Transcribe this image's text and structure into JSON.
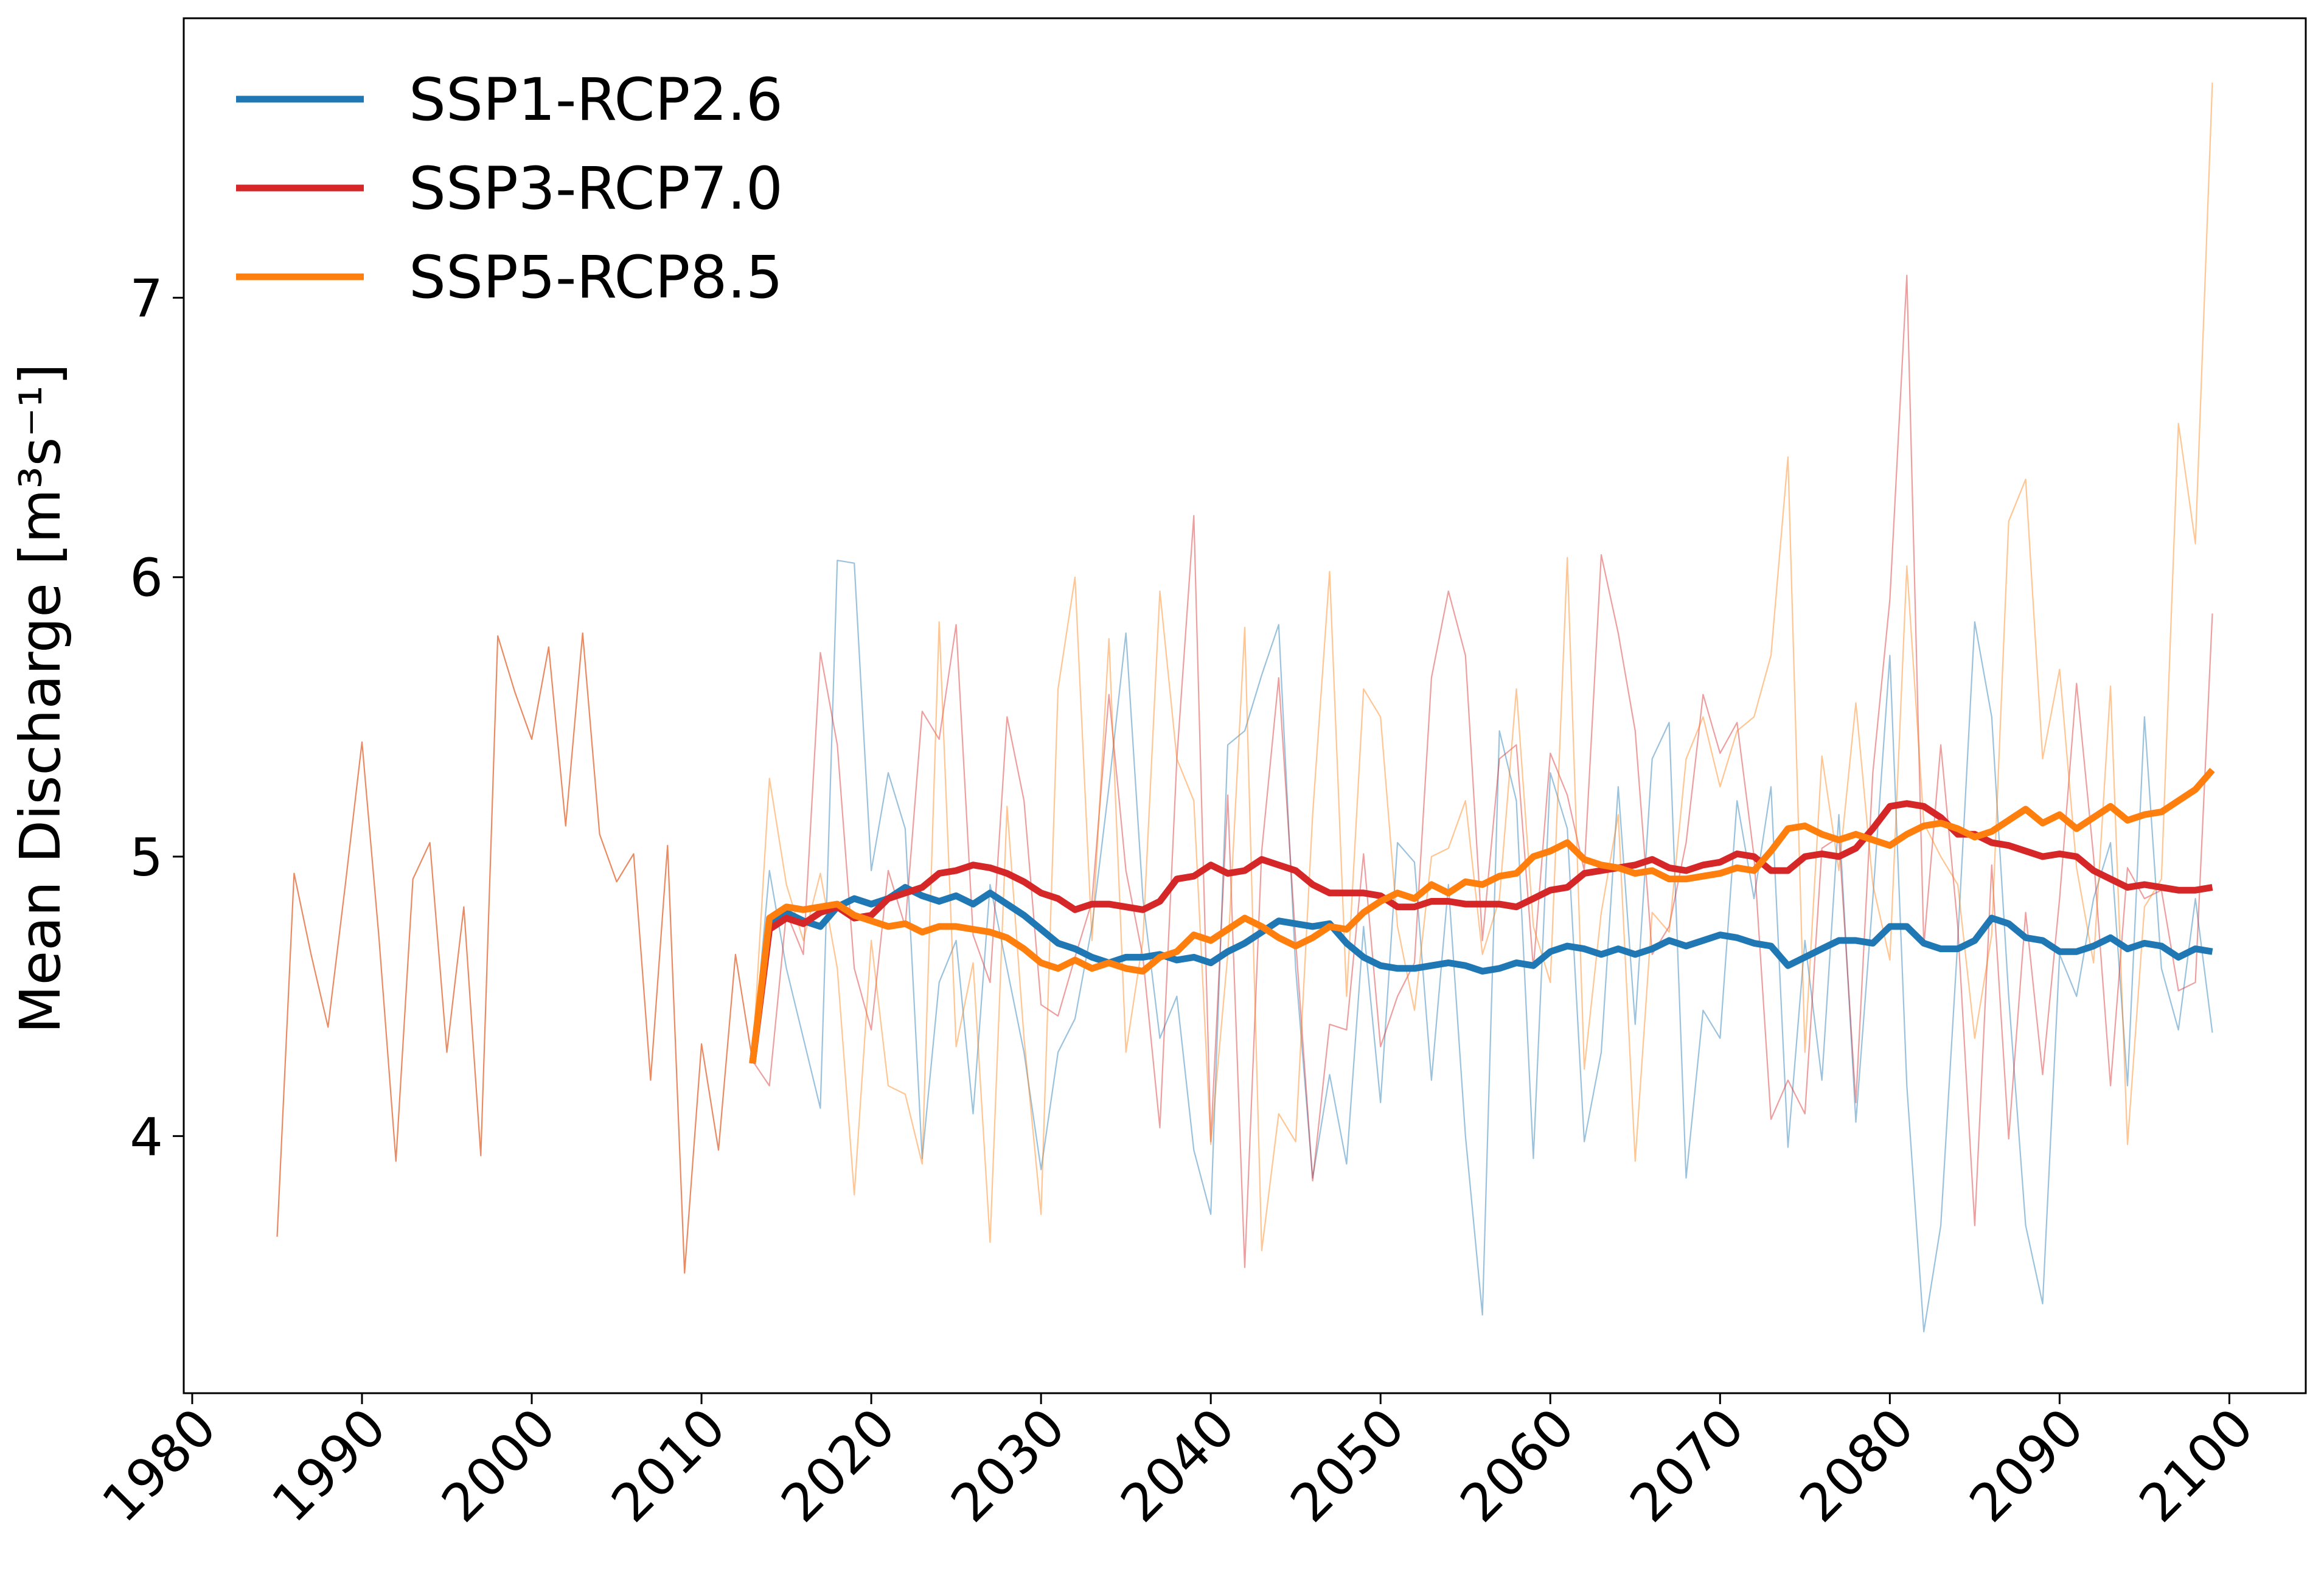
{
  "chart_data": {
    "type": "line",
    "title": "",
    "xlabel": "",
    "ylabel": "Mean Discharge [m³s⁻¹]",
    "xlim": [
      1979.5,
      2104.5
    ],
    "ylim": [
      3.08,
      8.0
    ],
    "xticks": [
      1980,
      1990,
      2000,
      2010,
      2020,
      2030,
      2040,
      2050,
      2060,
      2070,
      2080,
      2090,
      2100
    ],
    "xtick_labels": [
      "1980",
      "1990",
      "2000",
      "2010",
      "2020",
      "2030",
      "2040",
      "2050",
      "2060",
      "2070",
      "2080",
      "2090",
      "2100"
    ],
    "yticks": [
      4,
      5,
      6,
      7
    ],
    "ytick_labels": [
      "4",
      "5",
      "6",
      "7"
    ],
    "grid": false,
    "legend_position": "top-left",
    "historical": {
      "color": "#e8845a",
      "x": [
        1985,
        1986,
        1987,
        1988,
        1989,
        1990,
        1991,
        1992,
        1993,
        1994,
        1995,
        1996,
        1997,
        1998,
        1999,
        2000,
        2001,
        2002,
        2003,
        2004,
        2005,
        2006,
        2007,
        2008,
        2009,
        2010,
        2011,
        2012,
        2013
      ],
      "y": [
        3.64,
        4.94,
        4.65,
        4.39,
        4.89,
        5.41,
        4.71,
        3.91,
        4.92,
        5.05,
        4.3,
        4.82,
        3.93,
        5.79,
        5.59,
        5.42,
        5.75,
        5.11,
        5.8,
        5.08,
        4.91,
        5.01,
        4.2,
        5.04,
        3.51,
        4.33,
        3.95,
        4.65,
        4.27
      ]
    },
    "series": [
      {
        "name": "SSP1-RCP2.6",
        "color": "#1f77b4",
        "x": [
          2013,
          2014,
          2015,
          2016,
          2017,
          2018,
          2019,
          2020,
          2021,
          2022,
          2023,
          2024,
          2025,
          2026,
          2027,
          2028,
          2029,
          2030,
          2031,
          2032,
          2033,
          2034,
          2035,
          2036,
          2037,
          2038,
          2039,
          2040,
          2041,
          2042,
          2043,
          2044,
          2045,
          2046,
          2047,
          2048,
          2049,
          2050,
          2051,
          2052,
          2053,
          2054,
          2055,
          2056,
          2057,
          2058,
          2059,
          2060,
          2061,
          2062,
          2063,
          2064,
          2065,
          2066,
          2067,
          2068,
          2069,
          2070,
          2071,
          2072,
          2073,
          2074,
          2075,
          2076,
          2077,
          2078,
          2079,
          2080,
          2081,
          2082,
          2083,
          2084,
          2085,
          2086,
          2087,
          2088,
          2089,
          2090,
          2091,
          2092,
          2093,
          2094,
          2095,
          2096,
          2097,
          2098,
          2099
        ],
        "raw": [
          4.27,
          4.95,
          4.6,
          4.35,
          4.1,
          6.06,
          6.05,
          4.95,
          5.3,
          5.1,
          3.92,
          4.55,
          4.7,
          4.08,
          4.9,
          4.6,
          4.3,
          3.88,
          4.3,
          4.42,
          4.75,
          5.25,
          5.8,
          4.85,
          4.35,
          4.5,
          3.95,
          3.72,
          5.4,
          5.45,
          5.65,
          5.83,
          4.6,
          3.85,
          4.22,
          3.9,
          4.75,
          4.12,
          5.05,
          4.98,
          4.2,
          4.9,
          4.0,
          3.36,
          5.45,
          5.2,
          3.92,
          5.3,
          5.1,
          3.98,
          4.3,
          5.25,
          4.4,
          5.35,
          5.48,
          3.85,
          4.45,
          4.35,
          5.2,
          4.85,
          5.25,
          3.96,
          4.7,
          4.2,
          5.15,
          4.05,
          4.85,
          5.72,
          4.18,
          3.3,
          3.68,
          4.7,
          5.84,
          5.5,
          4.5,
          3.68,
          3.4,
          4.65,
          4.5,
          4.85,
          5.05,
          4.18,
          5.5,
          4.6,
          4.38,
          4.85,
          4.37
        ],
        "mean": [
          4.26,
          4.76,
          4.8,
          4.77,
          4.75,
          4.82,
          4.85,
          4.83,
          4.85,
          4.89,
          4.86,
          4.84,
          4.86,
          4.83,
          4.87,
          4.83,
          4.79,
          4.74,
          4.69,
          4.67,
          4.64,
          4.62,
          4.64,
          4.64,
          4.65,
          4.63,
          4.64,
          4.62,
          4.66,
          4.69,
          4.73,
          4.77,
          4.76,
          4.75,
          4.76,
          4.69,
          4.64,
          4.61,
          4.6,
          4.6,
          4.61,
          4.62,
          4.61,
          4.59,
          4.6,
          4.62,
          4.61,
          4.66,
          4.68,
          4.67,
          4.65,
          4.67,
          4.65,
          4.67,
          4.7,
          4.68,
          4.7,
          4.72,
          4.71,
          4.69,
          4.68,
          4.61,
          4.64,
          4.67,
          4.7,
          4.7,
          4.69,
          4.75,
          4.75,
          4.69,
          4.67,
          4.67,
          4.7,
          4.78,
          4.76,
          4.71,
          4.7,
          4.66,
          4.66,
          4.68,
          4.71,
          4.67,
          4.69,
          4.68,
          4.64,
          4.67,
          4.66
        ]
      },
      {
        "name": "SSP3-RCP7.0",
        "color": "#d62728",
        "x": [
          2013,
          2014,
          2015,
          2016,
          2017,
          2018,
          2019,
          2020,
          2021,
          2022,
          2023,
          2024,
          2025,
          2026,
          2027,
          2028,
          2029,
          2030,
          2031,
          2032,
          2033,
          2034,
          2035,
          2036,
          2037,
          2038,
          2039,
          2040,
          2041,
          2042,
          2043,
          2044,
          2045,
          2046,
          2047,
          2048,
          2049,
          2050,
          2051,
          2052,
          2053,
          2054,
          2055,
          2056,
          2057,
          2058,
          2059,
          2060,
          2061,
          2062,
          2063,
          2064,
          2065,
          2066,
          2067,
          2068,
          2069,
          2070,
          2071,
          2072,
          2073,
          2074,
          2075,
          2076,
          2077,
          2078,
          2079,
          2080,
          2081,
          2082,
          2083,
          2084,
          2085,
          2086,
          2087,
          2088,
          2089,
          2090,
          2091,
          2092,
          2093,
          2094,
          2095,
          2096,
          2097,
          2098,
          2099
        ],
        "raw": [
          4.27,
          4.18,
          4.8,
          4.65,
          5.73,
          5.4,
          4.6,
          4.38,
          4.95,
          4.75,
          5.52,
          5.42,
          5.83,
          4.72,
          4.55,
          5.5,
          5.2,
          4.47,
          4.43,
          4.64,
          4.84,
          5.58,
          4.95,
          4.64,
          4.03,
          5.35,
          6.22,
          3.98,
          5.22,
          3.53,
          5.02,
          5.64,
          4.7,
          3.84,
          4.4,
          4.38,
          5.01,
          4.32,
          4.5,
          4.62,
          5.64,
          5.95,
          5.72,
          4.7,
          5.35,
          5.4,
          4.6,
          5.37,
          5.22,
          4.95,
          6.08,
          5.8,
          5.45,
          4.65,
          4.75,
          5.05,
          5.58,
          5.37,
          5.48,
          5.0,
          4.06,
          4.2,
          4.08,
          5.03,
          5.07,
          4.12,
          5.3,
          5.92,
          7.08,
          4.68,
          5.4,
          4.75,
          3.68,
          4.97,
          3.99,
          4.8,
          4.22,
          4.85,
          5.62,
          5.0,
          4.18,
          4.96,
          4.85,
          4.88,
          4.52,
          4.55,
          5.87
        ],
        "mean": [
          4.26,
          4.74,
          4.78,
          4.76,
          4.8,
          4.82,
          4.78,
          4.79,
          4.85,
          4.87,
          4.89,
          4.94,
          4.95,
          4.97,
          4.96,
          4.94,
          4.91,
          4.87,
          4.85,
          4.81,
          4.83,
          4.83,
          4.82,
          4.81,
          4.84,
          4.92,
          4.93,
          4.97,
          4.94,
          4.95,
          4.99,
          4.97,
          4.95,
          4.9,
          4.87,
          4.87,
          4.87,
          4.86,
          4.82,
          4.82,
          4.84,
          4.84,
          4.83,
          4.83,
          4.83,
          4.82,
          4.85,
          4.88,
          4.89,
          4.94,
          4.95,
          4.96,
          4.97,
          4.99,
          4.96,
          4.95,
          4.97,
          4.98,
          5.01,
          5.0,
          4.95,
          4.95,
          5.0,
          5.01,
          5.0,
          5.03,
          5.1,
          5.18,
          5.19,
          5.18,
          5.14,
          5.08,
          5.08,
          5.05,
          5.04,
          5.02,
          5.0,
          5.01,
          5.0,
          4.95,
          4.92,
          4.89,
          4.9,
          4.89,
          4.88,
          4.88,
          4.89
        ]
      },
      {
        "name": "SSP5-RCP8.5",
        "color": "#ff7f0e",
        "x": [
          2013,
          2014,
          2015,
          2016,
          2017,
          2018,
          2019,
          2020,
          2021,
          2022,
          2023,
          2024,
          2025,
          2026,
          2027,
          2028,
          2029,
          2030,
          2031,
          2032,
          2033,
          2034,
          2035,
          2036,
          2037,
          2038,
          2039,
          2040,
          2041,
          2042,
          2043,
          2044,
          2045,
          2046,
          2047,
          2048,
          2049,
          2050,
          2051,
          2052,
          2053,
          2054,
          2055,
          2056,
          2057,
          2058,
          2059,
          2060,
          2061,
          2062,
          2063,
          2064,
          2065,
          2066,
          2067,
          2068,
          2069,
          2070,
          2071,
          2072,
          2073,
          2074,
          2075,
          2076,
          2077,
          2078,
          2079,
          2080,
          2081,
          2082,
          2083,
          2084,
          2085,
          2086,
          2087,
          2088,
          2089,
          2090,
          2091,
          2092,
          2093,
          2094,
          2095,
          2096,
          2097,
          2098,
          2099
        ],
        "raw": [
          4.27,
          5.28,
          4.9,
          4.7,
          4.94,
          4.6,
          3.79,
          4.7,
          4.18,
          4.15,
          3.9,
          5.84,
          4.32,
          4.62,
          3.62,
          5.18,
          4.35,
          3.72,
          5.6,
          6.0,
          4.7,
          5.78,
          4.3,
          4.7,
          5.95,
          5.35,
          5.2,
          3.97,
          4.65,
          5.82,
          3.59,
          4.08,
          3.98,
          5.15,
          6.02,
          4.5,
          5.6,
          5.5,
          4.75,
          4.45,
          5.0,
          5.03,
          5.2,
          4.65,
          4.85,
          5.6,
          4.75,
          4.55,
          6.07,
          4.24,
          4.8,
          5.15,
          3.91,
          4.8,
          4.73,
          5.35,
          5.5,
          5.25,
          5.45,
          5.5,
          5.72,
          6.43,
          4.3,
          5.36,
          4.95,
          5.55,
          4.9,
          4.63,
          6.04,
          5.12,
          5.0,
          4.9,
          4.35,
          4.72,
          6.2,
          6.35,
          5.35,
          5.67,
          4.96,
          4.62,
          5.61,
          3.97,
          4.82,
          4.92,
          6.55,
          6.12,
          7.77
        ],
        "mean": [
          4.26,
          4.78,
          4.82,
          4.81,
          4.82,
          4.83,
          4.79,
          4.77,
          4.75,
          4.76,
          4.73,
          4.75,
          4.75,
          4.74,
          4.73,
          4.71,
          4.67,
          4.62,
          4.6,
          4.63,
          4.6,
          4.62,
          4.6,
          4.59,
          4.64,
          4.66,
          4.72,
          4.7,
          4.74,
          4.78,
          4.75,
          4.71,
          4.68,
          4.71,
          4.75,
          4.74,
          4.8,
          4.84,
          4.87,
          4.85,
          4.9,
          4.87,
          4.91,
          4.9,
          4.93,
          4.94,
          5.0,
          5.02,
          5.05,
          4.99,
          4.97,
          4.96,
          4.94,
          4.95,
          4.92,
          4.92,
          4.93,
          4.94,
          4.96,
          4.95,
          5.02,
          5.1,
          5.11,
          5.08,
          5.06,
          5.08,
          5.06,
          5.04,
          5.08,
          5.11,
          5.12,
          5.1,
          5.07,
          5.09,
          5.13,
          5.17,
          5.12,
          5.15,
          5.1,
          5.14,
          5.18,
          5.13,
          5.15,
          5.16,
          5.2,
          5.24,
          5.31
        ]
      }
    ]
  }
}
